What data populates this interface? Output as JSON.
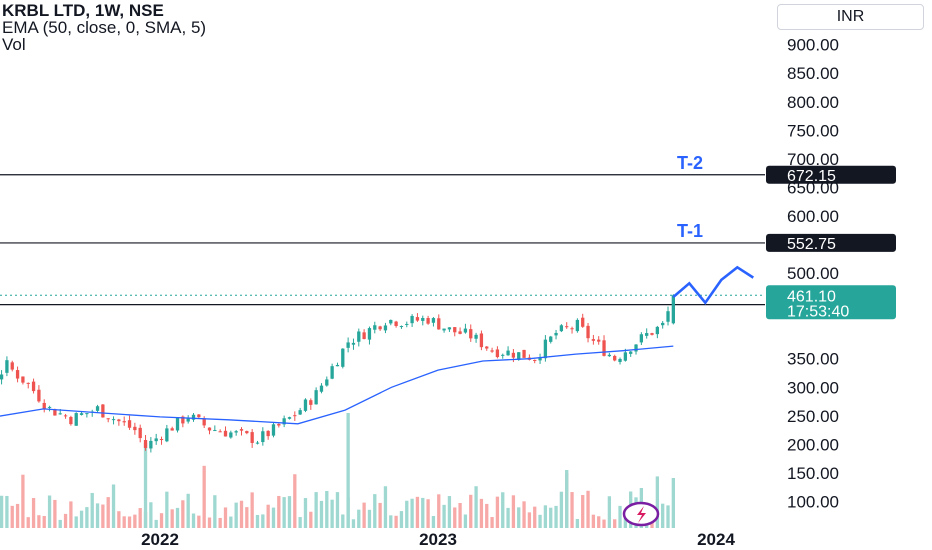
{
  "header": {
    "title": "KRBL LTD, 1W, NSE",
    "indicator": "EMA (50, close, 0, SMA, 5)",
    "volume_label": "Vol",
    "currency": "INR"
  },
  "chart_data": {
    "type": "candlestick",
    "symbol": "KRBL LTD",
    "interval": "1W",
    "exchange": "NSE",
    "ylim": [
      50,
      950
    ],
    "y_ticks": [
      {
        "v": 100,
        "label": "100.00"
      },
      {
        "v": 150,
        "label": "150.00"
      },
      {
        "v": 200,
        "label": "200.00"
      },
      {
        "v": 250,
        "label": "250.00"
      },
      {
        "v": 300,
        "label": "300.00"
      },
      {
        "v": 350,
        "label": "350.00"
      },
      {
        "v": 500,
        "label": "500.00"
      },
      {
        "v": 550,
        "label": "550.00"
      },
      {
        "v": 600,
        "label": "600.00"
      },
      {
        "v": 650,
        "label": "650.00"
      },
      {
        "v": 700,
        "label": "700.00"
      },
      {
        "v": 750,
        "label": "750.00"
      },
      {
        "v": 800,
        "label": "800.00"
      },
      {
        "v": 850,
        "label": "850.00"
      },
      {
        "v": 900,
        "label": "900.00"
      }
    ],
    "x_ticks": [
      {
        "label": "2022",
        "date": "2022-01-01"
      },
      {
        "label": "2023",
        "date": "2023-01-01"
      },
      {
        "label": "2024",
        "date": "2024-01-01"
      }
    ],
    "price_path": [
      [
        "2021-02-01",
        280
      ],
      [
        "2021-03-15",
        300
      ],
      [
        "2021-04-12",
        262
      ],
      [
        "2021-05-10",
        285
      ],
      [
        "2021-06-14",
        338
      ],
      [
        "2021-07-12",
        305
      ],
      [
        "2021-08-09",
        262
      ],
      [
        "2021-09-06",
        245
      ],
      [
        "2021-10-11",
        262
      ],
      [
        "2021-11-08",
        240
      ],
      [
        "2021-11-29",
        225
      ],
      [
        "2021-12-13",
        195
      ],
      [
        "2022-01-03",
        218
      ],
      [
        "2022-02-07",
        250
      ],
      [
        "2022-03-07",
        228
      ],
      [
        "2022-04-11",
        218
      ],
      [
        "2022-05-09",
        208
      ],
      [
        "2022-05-30",
        225
      ],
      [
        "2022-06-27",
        252
      ],
      [
        "2022-07-25",
        288
      ],
      [
        "2022-08-15",
        335
      ],
      [
        "2022-09-05",
        380
      ],
      [
        "2022-09-26",
        395
      ],
      [
        "2022-10-24",
        418
      ],
      [
        "2022-11-21",
        415
      ],
      [
        "2022-12-19",
        420
      ],
      [
        "2023-01-16",
        400
      ],
      [
        "2023-02-13",
        390
      ],
      [
        "2023-03-13",
        365
      ],
      [
        "2023-04-10",
        360
      ],
      [
        "2023-05-08",
        352
      ],
      [
        "2023-06-05",
        395
      ],
      [
        "2023-07-03",
        408
      ],
      [
        "2023-07-24",
        380
      ],
      [
        "2023-08-21",
        350
      ],
      [
        "2023-09-11",
        372
      ],
      [
        "2023-10-02",
        392
      ],
      [
        "2023-10-23",
        408
      ],
      [
        "2023-11-06",
        455
      ]
    ],
    "ema_50": [
      [
        "2021-02-01",
        238
      ],
      [
        "2021-05-01",
        242
      ],
      [
        "2021-08-01",
        262
      ],
      [
        "2021-10-15",
        255
      ],
      [
        "2022-01-01",
        248
      ],
      [
        "2022-04-01",
        243
      ],
      [
        "2022-07-01",
        236
      ],
      [
        "2022-09-01",
        260
      ],
      [
        "2022-11-01",
        300
      ],
      [
        "2023-01-01",
        330
      ],
      [
        "2023-03-01",
        346
      ],
      [
        "2023-05-01",
        350
      ],
      [
        "2023-07-01",
        358
      ],
      [
        "2023-09-01",
        364
      ],
      [
        "2023-11-06",
        372
      ]
    ],
    "volume": {
      "max": 100
    },
    "price_levels": [
      {
        "label": "T-2",
        "value": 672.15,
        "tag": "672.15"
      },
      {
        "label": "T-1",
        "value": 552.75,
        "tag": "552.75"
      },
      {
        "label": "",
        "value": 444.65,
        "tag": "444.65"
      }
    ],
    "last_price": {
      "value": 461.1,
      "tag": "461.10",
      "countdown": "17:53:40"
    },
    "projection": [
      [
        "2023-11-06",
        458
      ],
      [
        "2023-11-27",
        482
      ],
      [
        "2023-12-18",
        448
      ],
      [
        "2024-01-08",
        488
      ],
      [
        "2024-01-29",
        510
      ],
      [
        "2024-02-19",
        492
      ]
    ],
    "colors": {
      "up": "#26a69a",
      "down": "#ef5350",
      "ema": "#2962ff",
      "vol_up": "#9ed8d1",
      "vol_down": "#f7a9a8",
      "line": "#131722",
      "last_price": "#26a69a",
      "projection": "#2962ff"
    },
    "legend_position": "top-left",
    "grid": false
  }
}
